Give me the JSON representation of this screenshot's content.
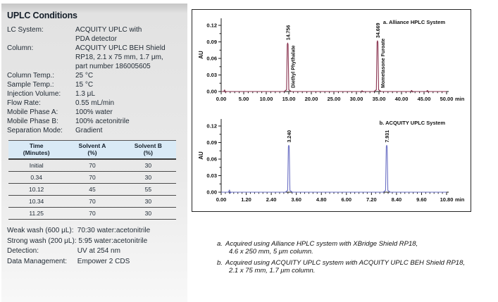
{
  "conditions_panel": {
    "title": "UPLC Conditions",
    "rows": [
      {
        "label": "LC System:",
        "value_lines": [
          "ACQUITY UPLC with",
          "PDA detector"
        ]
      },
      {
        "label": "Column:",
        "value_lines": [
          "ACQUITY UPLC BEH Shield",
          "RP18, 2.1 x 75 mm, 1.7 μm,",
          "part number 186005605"
        ]
      },
      {
        "label": "Column Temp.:",
        "value_lines": [
          "25 °C"
        ]
      },
      {
        "label": "Sample Temp.:",
        "value_lines": [
          "15 °C"
        ]
      },
      {
        "label": "Injection Volume:",
        "value_lines": [
          "1.3 μL"
        ]
      },
      {
        "label": "Flow Rate:",
        "value_lines": [
          "0.55 mL/min"
        ]
      },
      {
        "label": "Mobile Phase A:",
        "value_lines": [
          "100% water"
        ]
      },
      {
        "label": "Mobile Phase B:",
        "value_lines": [
          "100% acetonitrile"
        ]
      },
      {
        "label": "Separation Mode:",
        "value_lines": [
          "Gradient"
        ]
      }
    ],
    "gradient_table": {
      "headers": [
        {
          "line1": "Time",
          "line2": "(Minutes)"
        },
        {
          "line1": "Solvent A",
          "line2": "(%)"
        },
        {
          "line1": "Solvent B",
          "line2": "(%)"
        }
      ],
      "rows": [
        [
          "Initial",
          "70",
          "30"
        ],
        [
          "0.34",
          "70",
          "30"
        ],
        [
          "10.12",
          "45",
          "55"
        ],
        [
          "10.34",
          "70",
          "30"
        ],
        [
          "11.25",
          "70",
          "30"
        ]
      ]
    },
    "footer_lines": [
      {
        "label": "Weak wash (600 μL):",
        "value": "70:30 water:acetonitrile"
      },
      {
        "label": "Strong wash (200 μL):",
        "value": "5:95 water:acetonitrile"
      },
      {
        "label": "Detection:",
        "value": "UV at 254 nm"
      },
      {
        "label": "Data Management:",
        "value": "Empower 2 CDS"
      }
    ]
  },
  "figure": {
    "captions": [
      {
        "marker": "a.",
        "line1": "Acquired using Alliance HPLC system with XBridge Shield RP18,",
        "line2": "4.6 x 250 mm, 5 μm column."
      },
      {
        "marker": "b.",
        "line1": "Acquired using ACQUITY UPLC system with ACQUITY UPLC BEH Shield RP18,",
        "line2": "2.1 x 75 mm, 1.7 μm column."
      }
    ]
  },
  "chart_data": [
    {
      "type": "line",
      "title": "a. Alliance HPLC System",
      "ylabel": "AU",
      "x_unit": "min",
      "xlim": [
        0,
        50
      ],
      "ylim": [
        0,
        0.12
      ],
      "x_ticks": [
        "0.00",
        "5.00",
        "10.00",
        "15.00",
        "20.00",
        "25.00",
        "30.00",
        "35.00",
        "40.00",
        "45.00",
        "50.00"
      ],
      "y_ticks": [
        "0.00",
        "0.03",
        "0.06",
        "0.09",
        "0.12"
      ],
      "x_minor_per_major": 4,
      "line_color": "#8a3450",
      "peaks": [
        {
          "rt": 14.756,
          "height_au": 0.088,
          "rt_label": "14.756",
          "compound": "Diethyl Phythalate"
        },
        {
          "rt": 34.669,
          "height_au": 0.092,
          "rt_label": "34.669",
          "compound": "Mometasone Furoate"
        }
      ],
      "baseline_noise": [
        {
          "t": 1.0,
          "amp": 0.003
        },
        {
          "t": 31.5,
          "amp": 0.0015
        },
        {
          "t": 42.5,
          "amp": 0.002
        },
        {
          "t": 46.0,
          "amp": 0.002
        }
      ]
    },
    {
      "type": "line",
      "title": "b. ACQUITY UPLC System",
      "ylabel": "AU",
      "x_unit": "min",
      "xlim": [
        0,
        10.8
      ],
      "ylim": [
        0,
        0.12
      ],
      "x_ticks": [
        "0.00",
        "1.20",
        "2.40",
        "3.60",
        "4.80",
        "6.00",
        "7.20",
        "8.40",
        "9.60",
        "10.80"
      ],
      "y_ticks": [
        "0.00",
        "0.03",
        "0.06",
        "0.09",
        "0.12"
      ],
      "x_minor_per_major": 5,
      "line_color": "#6b70c4",
      "peaks": [
        {
          "rt": 3.24,
          "height_au": 0.085,
          "rt_label": "3.240",
          "compound": ""
        },
        {
          "rt": 7.931,
          "height_au": 0.085,
          "rt_label": "7.931",
          "compound": ""
        }
      ],
      "baseline_noise": [
        {
          "t": 0.45,
          "amp": 0.004
        }
      ]
    }
  ]
}
